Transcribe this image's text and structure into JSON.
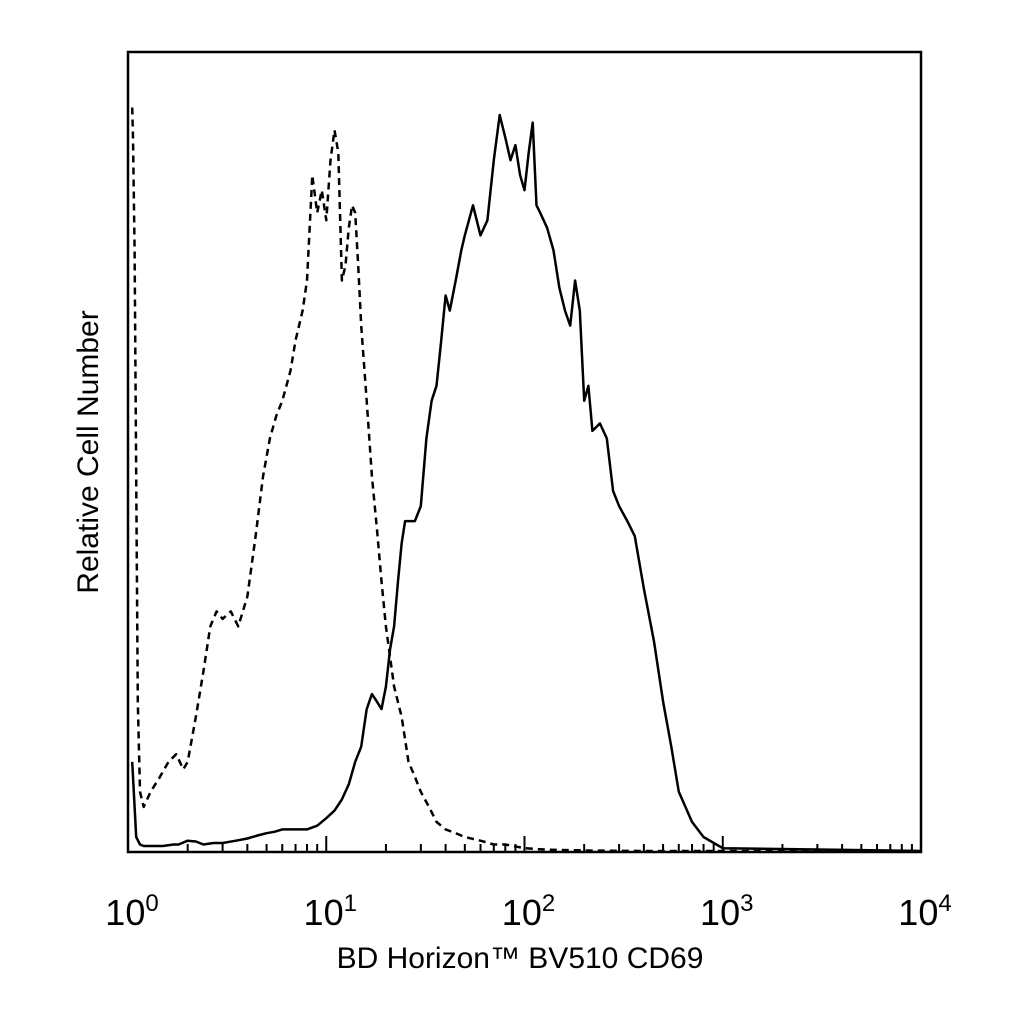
{
  "chart_data": {
    "type": "line",
    "title": "",
    "xlabel": "BD Horizon™ BV510 CD69",
    "ylabel": "Relative Cell Number",
    "x_scale": "log",
    "xlim": [
      1,
      10000
    ],
    "ylim": [
      0,
      1.0
    ],
    "grid": false,
    "legend": "none",
    "x_ticks": [
      {
        "value": 1,
        "base": "10",
        "exp": "0"
      },
      {
        "value": 10,
        "base": "10",
        "exp": "1"
      },
      {
        "value": 100,
        "base": "10",
        "exp": "2"
      },
      {
        "value": 1000,
        "base": "10",
        "exp": "3"
      },
      {
        "value": 10000,
        "base": "10",
        "exp": "4"
      }
    ],
    "series": [
      {
        "style": "dashed",
        "x": [
          1.05,
          1.06,
          1.08,
          1.1,
          1.12,
          1.15,
          1.2,
          1.3,
          1.45,
          1.6,
          1.75,
          1.9,
          2.0,
          2.2,
          2.4,
          2.6,
          2.8,
          3.0,
          3.3,
          3.6,
          4.0,
          4.4,
          4.8,
          5.2,
          5.6,
          6.0,
          6.6,
          7.0,
          7.6,
          8.0,
          8.5,
          9.0,
          9.5,
          10.0,
          10.5,
          11.0,
          11.5,
          12.0,
          12.5,
          13.0,
          13.5,
          14.0,
          14.5,
          15.0,
          16.0,
          17.0,
          18.0,
          19.0,
          20.0,
          22.0,
          24.0,
          26.0,
          28.0,
          30.0,
          33.0,
          36.0,
          40.0,
          45.0,
          50.0,
          60.0,
          70.0,
          80.0,
          100.0,
          130.0,
          200.0,
          400.0,
          1000.0,
          10000.0
        ],
        "y": [
          0.99,
          0.95,
          0.8,
          0.5,
          0.2,
          0.08,
          0.06,
          0.08,
          0.1,
          0.12,
          0.13,
          0.11,
          0.12,
          0.18,
          0.24,
          0.3,
          0.32,
          0.31,
          0.32,
          0.3,
          0.34,
          0.42,
          0.5,
          0.55,
          0.58,
          0.6,
          0.64,
          0.68,
          0.72,
          0.76,
          0.9,
          0.85,
          0.88,
          0.84,
          0.92,
          0.96,
          0.93,
          0.76,
          0.78,
          0.83,
          0.86,
          0.85,
          0.78,
          0.7,
          0.6,
          0.5,
          0.43,
          0.36,
          0.3,
          0.22,
          0.18,
          0.12,
          0.1,
          0.08,
          0.06,
          0.04,
          0.03,
          0.025,
          0.02,
          0.015,
          0.01,
          0.01,
          0.005,
          0.003,
          0.002,
          0.001,
          0.0,
          0.0
        ]
      },
      {
        "style": "solid",
        "x": [
          1.05,
          1.1,
          1.15,
          1.2,
          1.3,
          1.5,
          1.7,
          1.8,
          2.0,
          2.2,
          2.4,
          2.7,
          3.0,
          3.5,
          4.0,
          4.5,
          5.0,
          5.5,
          6.0,
          7.0,
          8.0,
          9.0,
          10.0,
          11.0,
          12.0,
          13.0,
          14.0,
          15.0,
          16.0,
          17.0,
          18.0,
          19.0,
          20.0,
          21.0,
          22.0,
          23.0,
          24.0,
          25.0,
          26.0,
          28.0,
          30.0,
          32.0,
          34.0,
          36.0,
          38.0,
          40.0,
          42.0,
          45.0,
          48.0,
          50.0,
          55.0,
          60.0,
          65.0,
          70.0,
          75.0,
          80.0,
          85.0,
          90.0,
          95.0,
          100.0,
          105.0,
          110.0,
          115.0,
          120.0,
          130.0,
          140.0,
          150.0,
          160.0,
          170.0,
          180.0,
          190.0,
          200.0,
          210.0,
          220.0,
          240.0,
          260.0,
          280.0,
          300.0,
          330.0,
          360.0,
          400.0,
          450.0,
          500.0,
          550.0,
          600.0,
          700.0,
          800.0,
          1000.0,
          10000.0
        ],
        "y": [
          0.12,
          0.02,
          0.01,
          0.008,
          0.008,
          0.008,
          0.01,
          0.01,
          0.015,
          0.014,
          0.01,
          0.012,
          0.012,
          0.015,
          0.018,
          0.022,
          0.025,
          0.027,
          0.03,
          0.03,
          0.03,
          0.035,
          0.045,
          0.055,
          0.07,
          0.09,
          0.12,
          0.14,
          0.19,
          0.21,
          0.2,
          0.19,
          0.22,
          0.27,
          0.3,
          0.36,
          0.41,
          0.44,
          0.44,
          0.44,
          0.46,
          0.55,
          0.6,
          0.62,
          0.68,
          0.74,
          0.72,
          0.76,
          0.8,
          0.82,
          0.86,
          0.82,
          0.84,
          0.92,
          0.98,
          0.95,
          0.92,
          0.94,
          0.9,
          0.88,
          0.93,
          0.97,
          0.86,
          0.85,
          0.83,
          0.8,
          0.75,
          0.72,
          0.7,
          0.76,
          0.72,
          0.6,
          0.62,
          0.56,
          0.57,
          0.55,
          0.48,
          0.46,
          0.44,
          0.42,
          0.35,
          0.28,
          0.2,
          0.14,
          0.08,
          0.04,
          0.02,
          0.005,
          0.0
        ]
      }
    ]
  }
}
